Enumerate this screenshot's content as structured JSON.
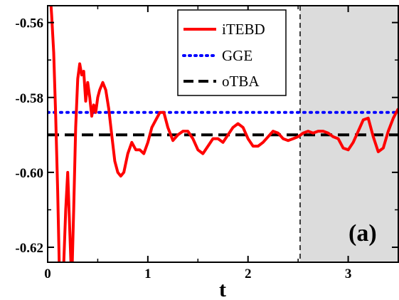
{
  "chart_data": {
    "type": "line",
    "title": "",
    "xlabel": "t",
    "ylabel": "",
    "panel_label": "(a)",
    "xlim": [
      0,
      3.5
    ],
    "ylim": [
      -0.624,
      -0.5555
    ],
    "x_ticks": [
      0,
      1,
      2,
      3
    ],
    "x_tick_labels": [
      "0",
      "1",
      "2",
      "3"
    ],
    "y_ticks": [
      -0.62,
      -0.6,
      -0.58,
      -0.56
    ],
    "y_tick_labels": [
      "-0.62",
      "-0.60",
      "-0.58",
      "-0.56"
    ],
    "grid": false,
    "legend_position": "top-right",
    "shaded_region": {
      "x_from": 2.52,
      "x_to": 3.5,
      "color": "#dcdcdc"
    },
    "vertical_marker_x": 2.52,
    "series": [
      {
        "name": "iTEBD",
        "style": "solid",
        "color": "#ff0000",
        "x": [
          0.0,
          0.02,
          0.04,
          0.06,
          0.08,
          0.1,
          0.12,
          0.14,
          0.16,
          0.18,
          0.2,
          0.22,
          0.24,
          0.26,
          0.28,
          0.3,
          0.32,
          0.34,
          0.36,
          0.38,
          0.4,
          0.42,
          0.44,
          0.46,
          0.48,
          0.5,
          0.52,
          0.55,
          0.58,
          0.61,
          0.64,
          0.67,
          0.7,
          0.73,
          0.76,
          0.8,
          0.84,
          0.88,
          0.92,
          0.96,
          1.0,
          1.04,
          1.08,
          1.12,
          1.16,
          1.2,
          1.25,
          1.3,
          1.35,
          1.4,
          1.45,
          1.5,
          1.55,
          1.6,
          1.65,
          1.7,
          1.75,
          1.8,
          1.85,
          1.9,
          1.95,
          2.0,
          2.05,
          2.1,
          2.15,
          2.2,
          2.25,
          2.3,
          2.35,
          2.4,
          2.45,
          2.5,
          2.55,
          2.6,
          2.65,
          2.7,
          2.75,
          2.8,
          2.85,
          2.9,
          2.95,
          3.0,
          3.05,
          3.1,
          3.15,
          3.2,
          3.25,
          3.3,
          3.35,
          3.4,
          3.45,
          3.5
        ],
        "values": [
          -0.545,
          -0.55,
          -0.558,
          -0.568,
          -0.585,
          -0.605,
          -0.63,
          -0.63,
          -0.625,
          -0.61,
          -0.6,
          -0.615,
          -0.63,
          -0.61,
          -0.588,
          -0.575,
          -0.571,
          -0.574,
          -0.573,
          -0.581,
          -0.576,
          -0.58,
          -0.585,
          -0.582,
          -0.584,
          -0.58,
          -0.578,
          -0.576,
          -0.578,
          -0.583,
          -0.59,
          -0.597,
          -0.6,
          -0.601,
          -0.6,
          -0.595,
          -0.592,
          -0.594,
          -0.594,
          -0.595,
          -0.592,
          -0.588,
          -0.586,
          -0.584,
          -0.584,
          -0.588,
          -0.5915,
          -0.59,
          -0.589,
          -0.589,
          -0.591,
          -0.594,
          -0.595,
          -0.593,
          -0.591,
          -0.591,
          -0.592,
          -0.59,
          -0.588,
          -0.587,
          -0.588,
          -0.591,
          -0.593,
          -0.593,
          -0.592,
          -0.5905,
          -0.589,
          -0.5895,
          -0.591,
          -0.5915,
          -0.591,
          -0.5905,
          -0.5895,
          -0.589,
          -0.5895,
          -0.589,
          -0.589,
          -0.5895,
          -0.5905,
          -0.591,
          -0.5935,
          -0.594,
          -0.592,
          -0.589,
          -0.586,
          -0.5855,
          -0.5905,
          -0.5945,
          -0.5935,
          -0.589,
          -0.5855,
          -0.583
        ]
      },
      {
        "name": "GGE",
        "style": "dotted",
        "color": "#0000ff",
        "x": [
          0,
          3.5
        ],
        "values": [
          -0.584,
          -0.584
        ]
      },
      {
        "name": "oTBA",
        "style": "dashed",
        "color": "#000000",
        "x": [
          0,
          3.5
        ],
        "values": [
          -0.59,
          -0.59
        ]
      }
    ]
  }
}
